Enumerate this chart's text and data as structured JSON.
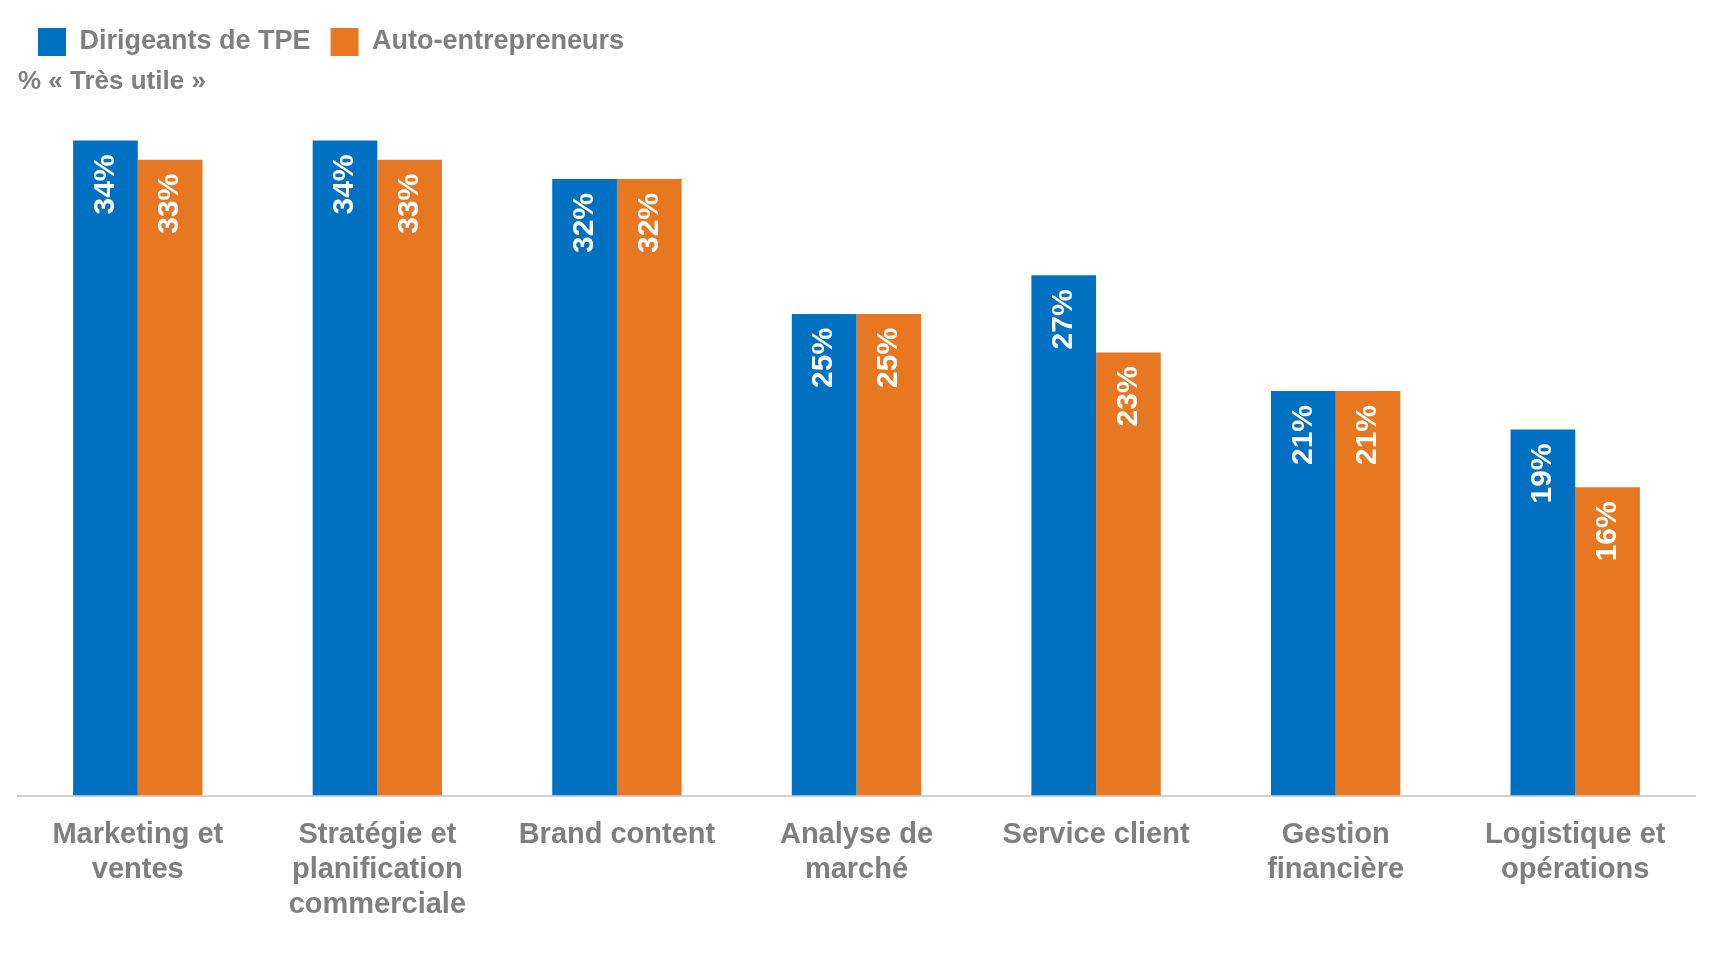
{
  "chart_data": {
    "type": "bar",
    "subtitle": "% « Très utile »",
    "categories": [
      "Marketing et ventes",
      "Stratégie et planification commerciale",
      "Brand content",
      "Analyse de marché",
      "Service client",
      "Gestion financière",
      "Logistique et opérations"
    ],
    "series": [
      {
        "name": "Dirigeants de TPE",
        "color": "#0070c0",
        "values": [
          34,
          34,
          32,
          25,
          27,
          21,
          19
        ],
        "value_labels": [
          "34%",
          "34%",
          "32%",
          "25%",
          "27%",
          "21%",
          "19%"
        ]
      },
      {
        "name": "Auto-entrepreneurs",
        "color": "#e87722",
        "values": [
          33,
          33,
          32,
          25,
          23,
          21,
          16
        ],
        "value_labels": [
          "33%",
          "33%",
          "32%",
          "25%",
          "23%",
          "21%",
          "16%"
        ]
      }
    ],
    "legend": "top left",
    "grid": false
  }
}
